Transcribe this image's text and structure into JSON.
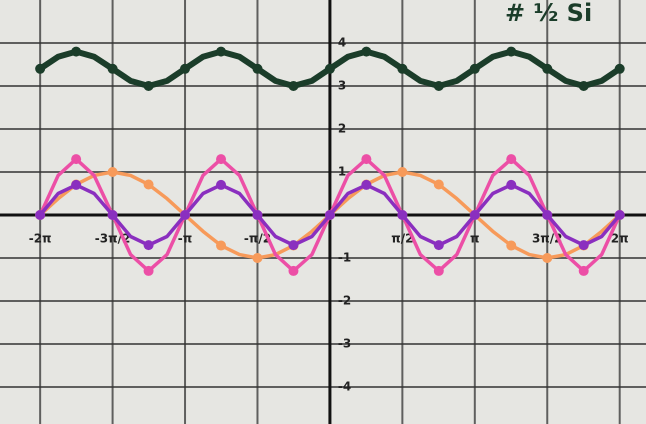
{
  "chart_data": {
    "type": "line",
    "annotation": "# ½ Si",
    "x": [
      -6.28,
      -5.89,
      -5.5,
      -5.11,
      -4.71,
      -4.32,
      -3.93,
      -3.53,
      -3.14,
      -2.75,
      -2.36,
      -1.96,
      -1.57,
      -1.18,
      -0.79,
      -0.39,
      0,
      0.39,
      0.79,
      1.18,
      1.57,
      1.96,
      2.36,
      2.75,
      3.14,
      3.53,
      3.93,
      4.32,
      4.71,
      5.11,
      5.5,
      5.89,
      6.28
    ],
    "series": [
      {
        "color": "#1b3d2a",
        "values": [
          3.4,
          3.68,
          3.8,
          3.68,
          3.4,
          3.12,
          3,
          3.12,
          3.4,
          3.68,
          3.8,
          3.68,
          3.4,
          3.12,
          3,
          3.12,
          3.4,
          3.68,
          3.8,
          3.68,
          3.4,
          3.12,
          3,
          3.12,
          3.4,
          3.68,
          3.8,
          3.68,
          3.4,
          3.12,
          3,
          3.12,
          3.4
        ]
      },
      {
        "color": "#f79a5a",
        "values": [
          0,
          0.38,
          0.71,
          0.92,
          1,
          0.92,
          0.71,
          0.38,
          0,
          -0.38,
          -0.71,
          -0.92,
          -1,
          -0.92,
          -0.71,
          -0.38,
          0,
          0.38,
          0.71,
          0.92,
          1,
          0.92,
          0.71,
          0.38,
          0,
          -0.38,
          -0.71,
          -0.92,
          -1,
          -0.92,
          -0.71,
          -0.38,
          0
        ]
      },
      {
        "color": "#ec4fa6",
        "values": [
          0,
          0.92,
          1.3,
          0.92,
          0,
          -0.92,
          -1.3,
          -0.92,
          0,
          0.92,
          1.3,
          0.92,
          0,
          -0.92,
          -1.3,
          -0.92,
          0,
          0.92,
          1.3,
          0.92,
          0,
          -0.92,
          -1.3,
          -0.92,
          0,
          0.92,
          1.3,
          0.92,
          0,
          -0.92,
          -1.3,
          -0.92,
          0
        ]
      },
      {
        "color": "#8a2fbf",
        "values": [
          0,
          0.5,
          0.7,
          0.5,
          0,
          -0.5,
          -0.7,
          -0.5,
          0,
          0.5,
          0.7,
          0.5,
          0,
          -0.5,
          -0.7,
          -0.5,
          0,
          0.5,
          0.7,
          0.5,
          0,
          -0.5,
          -0.7,
          -0.5,
          0,
          0.5,
          0.7,
          0.5,
          0,
          -0.5,
          -0.7,
          -0.5,
          0
        ]
      }
    ],
    "xlim": [
      -7.15,
      6.85
    ],
    "ylim": [
      -4.86,
      5
    ],
    "xticks": [
      {
        "value": -6.28,
        "label": "-2π"
      },
      {
        "value": -4.71,
        "label": "-3π/2"
      },
      {
        "value": -3.14,
        "label": "-π"
      },
      {
        "value": -1.57,
        "label": "-π/2"
      },
      {
        "value": 1.57,
        "label": "π/2"
      },
      {
        "value": 3.14,
        "label": "π"
      },
      {
        "value": 4.71,
        "label": "3π/2"
      },
      {
        "value": 6.28,
        "label": "2π"
      }
    ],
    "yticks": [
      4,
      3,
      2,
      1,
      -1,
      -2,
      -3,
      -4
    ],
    "grid": true
  }
}
